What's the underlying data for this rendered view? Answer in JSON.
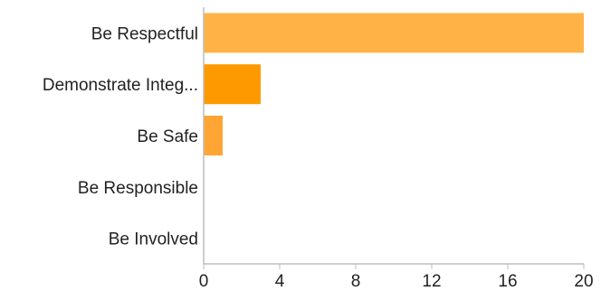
{
  "chart_data": {
    "type": "bar",
    "orientation": "horizontal",
    "title": "",
    "xlabel": "",
    "ylabel": "",
    "categories": [
      "Be Respectful",
      "Demonstrate Integ...",
      "Be Safe",
      "Be Responsible",
      "Be Involved"
    ],
    "values": [
      20,
      3,
      1,
      0,
      0
    ],
    "bar_colors": [
      "#ffb347",
      "#ff9900",
      "#ffa534",
      "#ffb347",
      "#ffb347"
    ],
    "xlim": [
      0,
      20
    ],
    "x_ticks": [
      0,
      4,
      8,
      12,
      16,
      20
    ],
    "grid": false,
    "legend": "none"
  }
}
